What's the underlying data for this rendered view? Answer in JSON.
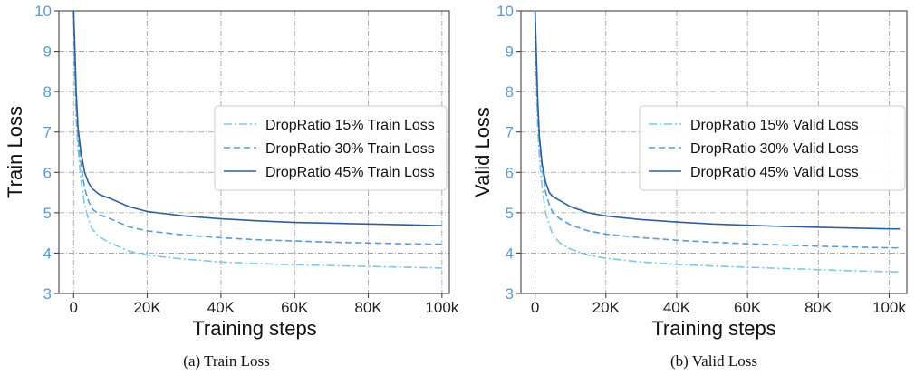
{
  "panels": [
    {
      "caption": "(a) Train Loss"
    },
    {
      "caption": "(b) Valid Loss"
    }
  ],
  "colors": {
    "tick_label_color": "#5b9bd5",
    "series_15": "#7ec8e3",
    "series_30": "#5b9bd5",
    "series_45": "#2f5f9a",
    "grid": "#9a9a9a"
  },
  "chart_data": [
    {
      "type": "line",
      "title": "",
      "xlabel": "Training steps",
      "ylabel": "Train Loss",
      "xlim": [
        -4000,
        102000
      ],
      "ylim": [
        3,
        10
      ],
      "xticks": [
        0,
        20000,
        40000,
        60000,
        80000,
        100000
      ],
      "xtick_labels": [
        "0",
        "20K",
        "40K",
        "60K",
        "80K",
        "100k"
      ],
      "yticks": [
        3,
        4,
        5,
        6,
        7,
        8,
        9,
        10
      ],
      "ytick_labels": [
        "3",
        "4",
        "5",
        "6",
        "7",
        "8",
        "9",
        "10"
      ],
      "grid": true,
      "legend_position": "center-right",
      "series": [
        {
          "name": "DropRatio 15% Train Loss",
          "style": "dashdot",
          "color": "#7ec8e3",
          "points": [
            [
              0,
              10.0
            ],
            [
              300,
              8.5
            ],
            [
              700,
              7.3
            ],
            [
              1200,
              6.6
            ],
            [
              2000,
              5.8
            ],
            [
              3000,
              5.2
            ],
            [
              4000,
              4.85
            ],
            [
              5000,
              4.6
            ],
            [
              7000,
              4.4
            ],
            [
              10000,
              4.25
            ],
            [
              15000,
              4.05
            ],
            [
              20000,
              3.95
            ],
            [
              30000,
              3.85
            ],
            [
              40000,
              3.78
            ],
            [
              50000,
              3.74
            ],
            [
              60000,
              3.71
            ],
            [
              70000,
              3.69
            ],
            [
              80000,
              3.67
            ],
            [
              90000,
              3.65
            ],
            [
              100000,
              3.63
            ]
          ]
        },
        {
          "name": "DropRatio 30% Train Loss",
          "style": "dashed",
          "color": "#5b9bd5",
          "points": [
            [
              0,
              10.0
            ],
            [
              300,
              8.8
            ],
            [
              700,
              7.7
            ],
            [
              1200,
              6.9
            ],
            [
              2000,
              6.2
            ],
            [
              3000,
              5.6
            ],
            [
              4000,
              5.3
            ],
            [
              5000,
              5.1
            ],
            [
              7000,
              4.95
            ],
            [
              10000,
              4.85
            ],
            [
              15000,
              4.65
            ],
            [
              20000,
              4.55
            ],
            [
              30000,
              4.45
            ],
            [
              40000,
              4.38
            ],
            [
              50000,
              4.33
            ],
            [
              60000,
              4.3
            ],
            [
              70000,
              4.27
            ],
            [
              80000,
              4.25
            ],
            [
              90000,
              4.23
            ],
            [
              100000,
              4.22
            ]
          ]
        },
        {
          "name": "DropRatio 45% Train Loss",
          "style": "solid",
          "color": "#2f5f9a",
          "points": [
            [
              0,
              10.0
            ],
            [
              300,
              9.2
            ],
            [
              700,
              8.0
            ],
            [
              1200,
              7.1
            ],
            [
              2000,
              6.5
            ],
            [
              3000,
              6.0
            ],
            [
              4000,
              5.75
            ],
            [
              5000,
              5.6
            ],
            [
              7000,
              5.45
            ],
            [
              10000,
              5.35
            ],
            [
              15000,
              5.15
            ],
            [
              20000,
              5.03
            ],
            [
              30000,
              4.92
            ],
            [
              40000,
              4.85
            ],
            [
              50000,
              4.8
            ],
            [
              60000,
              4.76
            ],
            [
              70000,
              4.74
            ],
            [
              80000,
              4.72
            ],
            [
              90000,
              4.7
            ],
            [
              100000,
              4.68
            ]
          ]
        }
      ]
    },
    {
      "type": "line",
      "title": "",
      "xlabel": "Training steps",
      "ylabel": "Valid  Loss",
      "xlim": [
        -4000,
        105000
      ],
      "ylim": [
        3,
        10
      ],
      "xticks": [
        0,
        20000,
        40000,
        60000,
        80000,
        100000
      ],
      "xtick_labels": [
        "0",
        "20K",
        "40K",
        "60K",
        "80K",
        "100k"
      ],
      "yticks": [
        3,
        4,
        5,
        6,
        7,
        8,
        9,
        10
      ],
      "ytick_labels": [
        "3",
        "4",
        "5",
        "6",
        "7",
        "8",
        "9",
        "10"
      ],
      "grid": true,
      "legend_position": "center-right",
      "series": [
        {
          "name": "DropRatio 15% Valid Loss",
          "style": "dashdot",
          "color": "#7ec8e3",
          "points": [
            [
              0,
              10.0
            ],
            [
              300,
              8.4
            ],
            [
              700,
              7.2
            ],
            [
              1200,
              6.4
            ],
            [
              2000,
              5.6
            ],
            [
              3000,
              5.0
            ],
            [
              4000,
              4.7
            ],
            [
              5000,
              4.45
            ],
            [
              7000,
              4.25
            ],
            [
              10000,
              4.1
            ],
            [
              15000,
              3.95
            ],
            [
              20000,
              3.87
            ],
            [
              30000,
              3.78
            ],
            [
              40000,
              3.72
            ],
            [
              50000,
              3.68
            ],
            [
              60000,
              3.65
            ],
            [
              70000,
              3.62
            ],
            [
              80000,
              3.59
            ],
            [
              90000,
              3.56
            ],
            [
              100000,
              3.54
            ],
            [
              103000,
              3.53
            ]
          ]
        },
        {
          "name": "DropRatio 30% Valid Loss",
          "style": "dashed",
          "color": "#5b9bd5",
          "points": [
            [
              0,
              10.0
            ],
            [
              300,
              8.7
            ],
            [
              700,
              7.6
            ],
            [
              1200,
              6.8
            ],
            [
              2000,
              6.1
            ],
            [
              3000,
              5.5
            ],
            [
              4000,
              5.2
            ],
            [
              5000,
              5.0
            ],
            [
              7000,
              4.85
            ],
            [
              10000,
              4.7
            ],
            [
              15000,
              4.55
            ],
            [
              20000,
              4.47
            ],
            [
              30000,
              4.38
            ],
            [
              40000,
              4.32
            ],
            [
              50000,
              4.27
            ],
            [
              60000,
              4.23
            ],
            [
              70000,
              4.2
            ],
            [
              80000,
              4.17
            ],
            [
              90000,
              4.15
            ],
            [
              100000,
              4.13
            ],
            [
              103000,
              4.13
            ]
          ]
        },
        {
          "name": "DropRatio 45% Valid Loss",
          "style": "solid",
          "color": "#2f5f9a",
          "points": [
            [
              0,
              10.0
            ],
            [
              300,
              9.1
            ],
            [
              700,
              7.9
            ],
            [
              1200,
              6.9
            ],
            [
              2000,
              6.2
            ],
            [
              3000,
              5.75
            ],
            [
              4000,
              5.5
            ],
            [
              5000,
              5.4
            ],
            [
              7000,
              5.3
            ],
            [
              10000,
              5.15
            ],
            [
              15000,
              5.0
            ],
            [
              20000,
              4.92
            ],
            [
              30000,
              4.83
            ],
            [
              40000,
              4.77
            ],
            [
              50000,
              4.72
            ],
            [
              60000,
              4.69
            ],
            [
              70000,
              4.66
            ],
            [
              80000,
              4.64
            ],
            [
              90000,
              4.62
            ],
            [
              100000,
              4.6
            ],
            [
              103000,
              4.6
            ]
          ]
        }
      ]
    }
  ]
}
